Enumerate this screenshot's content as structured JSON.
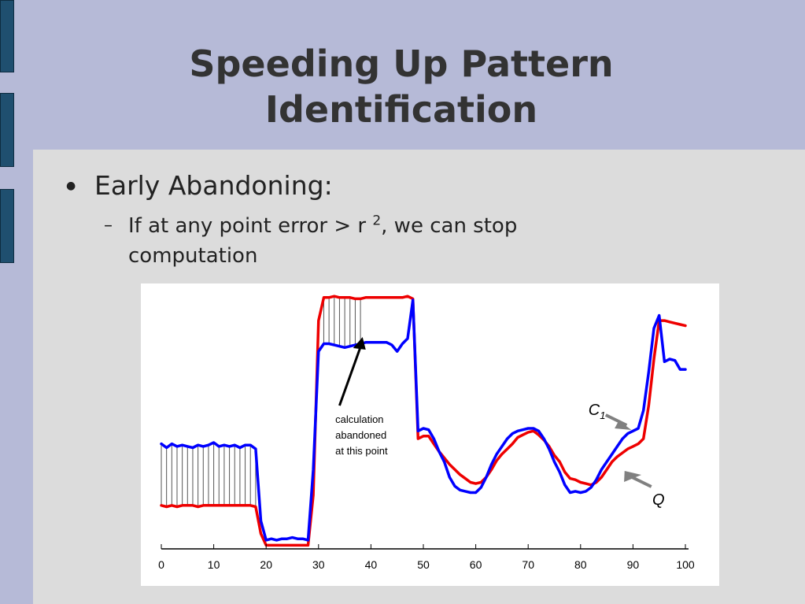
{
  "slide": {
    "title": "Speeding Up Pattern Identification",
    "bullet": "Early Abandoning:",
    "sub_bullet_prefix": "If at any point error > r ",
    "sub_bullet_superscript": "2",
    "sub_bullet_suffix": ", we can stop computation",
    "colors": {
      "background": "#b6bad7",
      "panel": "#dcdcdc",
      "deco_bar": "#1f4f6f",
      "title": "#333333"
    }
  },
  "chart_data": {
    "type": "line",
    "x_ticks": [
      0,
      10,
      20,
      30,
      40,
      50,
      60,
      70,
      80,
      90,
      100
    ],
    "xlim": [
      0,
      100
    ],
    "ylim": [
      0,
      10
    ],
    "grid": false,
    "annotation_text": [
      "calculation",
      "abandoned",
      "at this point"
    ],
    "abandon_index": 38,
    "series": [
      {
        "name": "Q",
        "color": "#0000ff",
        "x": [
          0,
          1,
          2,
          3,
          4,
          5,
          6,
          7,
          8,
          9,
          10,
          11,
          12,
          13,
          14,
          15,
          16,
          17,
          18,
          19,
          20,
          21,
          22,
          23,
          24,
          25,
          26,
          27,
          28,
          29,
          30,
          31,
          32,
          33,
          34,
          35,
          36,
          37,
          38,
          39,
          40,
          41,
          42,
          43,
          44,
          45,
          46,
          47,
          48,
          49,
          50,
          51,
          52,
          53,
          54,
          55,
          56,
          57,
          58,
          59,
          60,
          61,
          62,
          63,
          64,
          65,
          66,
          67,
          68,
          69,
          70,
          71,
          72,
          73,
          74,
          75,
          76,
          77,
          78,
          79,
          80,
          81,
          82,
          83,
          84,
          85,
          86,
          87,
          88,
          89,
          90,
          91,
          92,
          93,
          94,
          95,
          96,
          97,
          98,
          99,
          100
        ],
        "values": [
          4.0,
          3.85,
          4.0,
          3.9,
          3.95,
          3.9,
          3.85,
          3.95,
          3.9,
          3.95,
          4.05,
          3.9,
          3.95,
          3.9,
          3.95,
          3.85,
          3.95,
          3.95,
          3.8,
          1.0,
          0.25,
          0.3,
          0.25,
          0.3,
          0.3,
          0.35,
          0.3,
          0.3,
          0.25,
          3.0,
          7.6,
          7.9,
          7.9,
          7.85,
          7.8,
          7.75,
          7.8,
          7.85,
          7.9,
          7.95,
          7.95,
          7.95,
          7.95,
          7.95,
          7.85,
          7.6,
          7.9,
          8.1,
          9.6,
          4.5,
          4.6,
          4.55,
          4.2,
          3.7,
          3.3,
          2.7,
          2.35,
          2.2,
          2.15,
          2.1,
          2.1,
          2.3,
          2.7,
          3.2,
          3.6,
          3.9,
          4.2,
          4.4,
          4.5,
          4.55,
          4.6,
          4.6,
          4.5,
          4.2,
          3.8,
          3.3,
          2.9,
          2.4,
          2.1,
          2.15,
          2.1,
          2.15,
          2.3,
          2.6,
          3.0,
          3.3,
          3.6,
          3.9,
          4.2,
          4.4,
          4.5,
          4.6,
          5.3,
          6.8,
          8.5,
          9.0,
          7.2,
          7.3,
          7.25,
          6.9,
          6.9
        ]
      },
      {
        "name": "C",
        "name_subscript": "1",
        "color": "#ee0000",
        "x": [
          0,
          1,
          2,
          3,
          4,
          5,
          6,
          7,
          8,
          9,
          10,
          11,
          12,
          13,
          14,
          15,
          16,
          17,
          18,
          19,
          20,
          21,
          22,
          23,
          24,
          25,
          26,
          27,
          28,
          29,
          30,
          31,
          32,
          33,
          34,
          35,
          36,
          37,
          38,
          39,
          40,
          41,
          42,
          43,
          44,
          45,
          46,
          47,
          48,
          49,
          50,
          51,
          52,
          53,
          54,
          55,
          56,
          57,
          58,
          59,
          60,
          61,
          62,
          63,
          64,
          65,
          66,
          67,
          68,
          69,
          70,
          71,
          72,
          73,
          74,
          75,
          76,
          77,
          78,
          79,
          80,
          81,
          82,
          83,
          84,
          85,
          86,
          87,
          88,
          89,
          90,
          91,
          92,
          93,
          94,
          95,
          96,
          97,
          98,
          99,
          100
        ],
        "values": [
          1.6,
          1.55,
          1.6,
          1.55,
          1.6,
          1.6,
          1.6,
          1.55,
          1.6,
          1.6,
          1.6,
          1.6,
          1.6,
          1.6,
          1.6,
          1.6,
          1.6,
          1.6,
          1.55,
          0.5,
          0.05,
          0.05,
          0.05,
          0.05,
          0.05,
          0.05,
          0.05,
          0.05,
          0.05,
          2.0,
          8.8,
          9.7,
          9.7,
          9.75,
          9.7,
          9.7,
          9.7,
          9.65,
          9.65,
          9.7,
          9.7,
          9.7,
          9.7,
          9.7,
          9.7,
          9.7,
          9.7,
          9.75,
          9.65,
          4.2,
          4.3,
          4.3,
          4.0,
          3.7,
          3.45,
          3.2,
          3.0,
          2.8,
          2.65,
          2.5,
          2.45,
          2.5,
          2.7,
          3.0,
          3.35,
          3.6,
          3.8,
          4.0,
          4.25,
          4.35,
          4.45,
          4.5,
          4.35,
          4.15,
          3.9,
          3.55,
          3.3,
          2.9,
          2.65,
          2.6,
          2.5,
          2.45,
          2.4,
          2.5,
          2.7,
          3.0,
          3.3,
          3.5,
          3.65,
          3.8,
          3.9,
          4.0,
          4.2,
          5.5,
          7.3,
          8.8,
          8.8,
          8.75,
          8.7,
          8.65,
          8.6
        ]
      }
    ]
  }
}
